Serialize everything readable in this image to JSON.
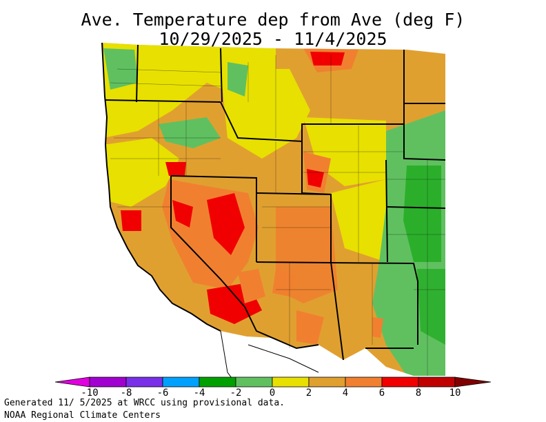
{
  "title": {
    "line1": "Ave. Temperature dep from Ave (deg F)",
    "line2": "10/29/2025 - 11/4/2025"
  },
  "legend": {
    "ticks": [
      "-10",
      "-8",
      "-6",
      "-4",
      "-2",
      "0",
      "2",
      "4",
      "6",
      "8",
      "10"
    ],
    "colors": [
      "#e000e0",
      "#a000d0",
      "#7a30e8",
      "#00a0ff",
      "#00a000",
      "#60c060",
      "#e8e000",
      "#e0a030",
      "#f08030",
      "#f00000",
      "#c00000",
      "#800000"
    ]
  },
  "footer": {
    "line1": "Generated 11/ 5/2025 at WRCC using provisional data.",
    "line2": "NOAA Regional Climate Centers"
  }
}
